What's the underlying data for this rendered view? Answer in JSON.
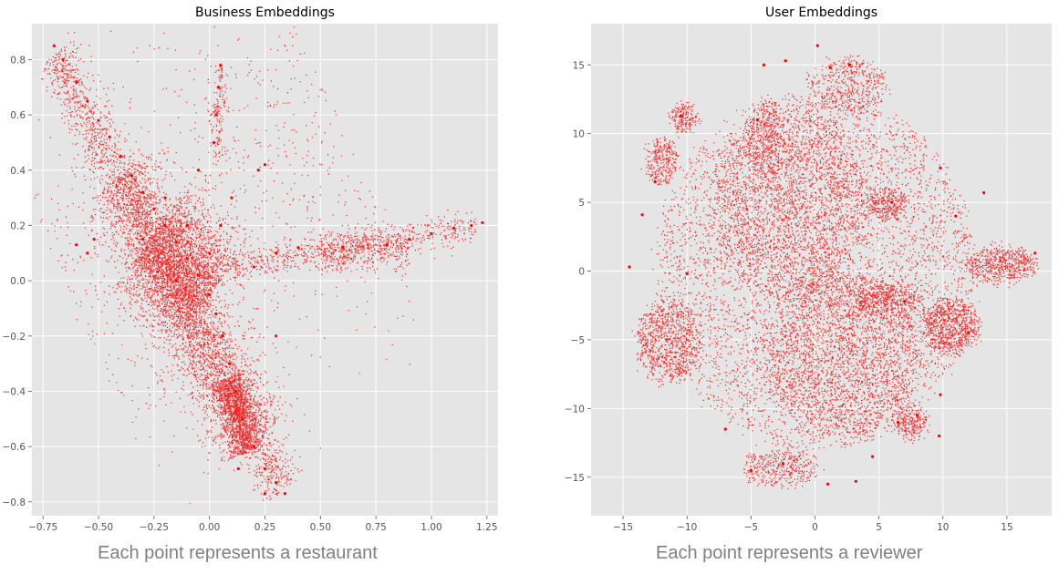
{
  "colors": {
    "panel_background": "#e5e5e5",
    "grid": "#ffffff",
    "points": "#ff0000",
    "caption": "#808080"
  },
  "chart_data": [
    {
      "type": "scatter",
      "title": "Business Embeddings",
      "caption": "Each point represents a restaurant",
      "xlabel": "",
      "ylabel": "",
      "xlim": [
        -0.8,
        1.3
      ],
      "ylim": [
        -0.85,
        0.93
      ],
      "xticks": [
        -0.75,
        -0.5,
        -0.25,
        0.0,
        0.25,
        0.5,
        0.75,
        1.0,
        1.25
      ],
      "xtick_labels": [
        "−0.75",
        "−0.50",
        "−0.25",
        "0.00",
        "0.25",
        "0.50",
        "0.75",
        "1.00",
        "1.25"
      ],
      "yticks": [
        -0.8,
        -0.6,
        -0.4,
        -0.2,
        0.0,
        0.2,
        0.4,
        0.6,
        0.8
      ],
      "ytick_labels": [
        "−0.8",
        "−0.6",
        "−0.4",
        "−0.2",
        "0.0",
        "0.2",
        "0.4",
        "0.6",
        "0.8"
      ],
      "grid": true,
      "point_color": "#ff0000",
      "points": [
        [
          -0.7,
          0.85
        ],
        [
          -0.66,
          0.8
        ],
        [
          -0.6,
          0.72
        ],
        [
          -0.55,
          0.65
        ],
        [
          -0.5,
          0.58
        ],
        [
          -0.45,
          0.52
        ],
        [
          -0.4,
          0.45
        ],
        [
          -0.35,
          0.38
        ],
        [
          -0.3,
          0.32
        ],
        [
          -0.25,
          0.26
        ],
        [
          -0.2,
          0.2
        ],
        [
          -0.15,
          0.14
        ],
        [
          -0.1,
          0.08
        ],
        [
          -0.05,
          0.02
        ],
        [
          0.0,
          -0.05
        ],
        [
          0.03,
          -0.12
        ],
        [
          0.06,
          -0.2
        ],
        [
          0.09,
          -0.3
        ],
        [
          0.12,
          -0.4
        ],
        [
          0.15,
          -0.5
        ],
        [
          0.2,
          -0.6
        ],
        [
          0.25,
          -0.68
        ],
        [
          0.3,
          -0.73
        ],
        [
          0.34,
          -0.77
        ],
        [
          0.13,
          -0.68
        ],
        [
          0.25,
          -0.77
        ],
        [
          -0.2,
          0.3
        ],
        [
          -0.1,
          0.2
        ],
        [
          -0.3,
          0.15
        ],
        [
          -0.15,
          0.0
        ],
        [
          0.0,
          0.1
        ],
        [
          0.05,
          0.2
        ],
        [
          0.2,
          0.05
        ],
        [
          0.4,
          0.12
        ],
        [
          0.6,
          0.12
        ],
        [
          0.8,
          0.13
        ],
        [
          0.9,
          0.15
        ],
        [
          1.0,
          0.17
        ],
        [
          1.1,
          0.19
        ],
        [
          1.18,
          0.2
        ],
        [
          1.23,
          0.21
        ],
        [
          0.05,
          0.78
        ],
        [
          0.04,
          0.7
        ],
        [
          0.03,
          0.6
        ],
        [
          0.02,
          0.5
        ],
        [
          0.25,
          0.42
        ],
        [
          0.22,
          0.4
        ],
        [
          -0.52,
          0.15
        ],
        [
          -0.55,
          0.1
        ],
        [
          -0.6,
          0.13
        ],
        [
          0.3,
          0.1
        ],
        [
          0.3,
          -0.2
        ],
        [
          0.1,
          0.3
        ],
        [
          -0.05,
          0.4
        ]
      ],
      "clusters": [
        {
          "from": [
            -0.7,
            0.82
          ],
          "to": [
            0.33,
            -0.76
          ],
          "width": 0.05,
          "n": 2600
        },
        {
          "from": [
            -0.42,
            0.38
          ],
          "to": [
            0.2,
            -0.58
          ],
          "width": 0.09,
          "n": 2600
        },
        {
          "from": [
            -0.25,
            0.18
          ],
          "to": [
            0.0,
            -0.05
          ],
          "width": 0.11,
          "n": 2200
        },
        {
          "from": [
            0.08,
            -0.35
          ],
          "to": [
            0.17,
            -0.62
          ],
          "width": 0.04,
          "n": 1200
        },
        {
          "from": [
            0.1,
            0.05
          ],
          "to": [
            1.2,
            0.2
          ],
          "width": 0.03,
          "n": 700
        },
        {
          "from": [
            0.5,
            0.1
          ],
          "to": [
            0.9,
            0.12
          ],
          "width": 0.04,
          "n": 400
        },
        {
          "from": [
            0.03,
            0.45
          ],
          "to": [
            0.05,
            0.78
          ],
          "width": 0.02,
          "n": 160
        },
        {
          "from": [
            -0.6,
            -0.1
          ],
          "to": [
            0.6,
            0.55
          ],
          "width": 0.35,
          "n": 900
        }
      ]
    },
    {
      "type": "scatter",
      "title": "User Embeddings",
      "caption": "Each point represents a reviewer",
      "xlabel": "",
      "ylabel": "",
      "xlim": [
        -17.5,
        18.5
      ],
      "ylim": [
        -17.8,
        18.0
      ],
      "xticks": [
        -15,
        -10,
        -5,
        0,
        5,
        10,
        15
      ],
      "xtick_labels": [
        "−15",
        "−10",
        "−5",
        "0",
        "5",
        "10",
        "15"
      ],
      "yticks": [
        -15,
        -10,
        -5,
        0,
        5,
        10,
        15
      ],
      "ytick_labels": [
        "−15",
        "−10",
        "−5",
        "0",
        "5",
        "10",
        "15"
      ],
      "grid": true,
      "point_color": "#ff0000",
      "points": [
        [
          17.2,
          1.3
        ],
        [
          -14.5,
          0.3
        ],
        [
          -13.5,
          4.1
        ],
        [
          13.2,
          5.7
        ],
        [
          11.0,
          4.0
        ],
        [
          9.8,
          7.5
        ],
        [
          -10.5,
          11.3
        ],
        [
          -4.0,
          15.0
        ],
        [
          -2.3,
          15.3
        ],
        [
          1.2,
          14.8
        ],
        [
          2.7,
          15.0
        ],
        [
          -4.5,
          11.0
        ],
        [
          -5.0,
          -14.5
        ],
        [
          1.0,
          -15.5
        ],
        [
          3.2,
          -15.3
        ],
        [
          6.5,
          -11.0
        ],
        [
          8.0,
          -10.5
        ],
        [
          9.8,
          -9.0
        ],
        [
          9.7,
          -12.0
        ],
        [
          12.0,
          -4.5
        ],
        [
          6.0,
          5.0
        ],
        [
          -12.5,
          6.5
        ],
        [
          -10.0,
          -0.2
        ],
        [
          7.0,
          -2.2
        ],
        [
          0.2,
          16.4
        ],
        [
          -7.0,
          -11.5
        ],
        [
          -2.5,
          -14.0
        ],
        [
          4.5,
          -13.5
        ]
      ],
      "clusters": [
        {
          "center": [
            0,
            0
          ],
          "rx": 12.5,
          "ry": 13,
          "n": 9000
        },
        {
          "center": [
            -2,
            5
          ],
          "rx": 6,
          "ry": 7,
          "n": 2400
        },
        {
          "center": [
            2,
            -6
          ],
          "rx": 6,
          "ry": 6,
          "n": 2200
        },
        {
          "center": [
            10.5,
            -4
          ],
          "rx": 2.2,
          "ry": 2,
          "n": 800
        },
        {
          "center": [
            -11.5,
            -5
          ],
          "rx": 2.5,
          "ry": 3,
          "n": 900
        },
        {
          "center": [
            14.5,
            0.5
          ],
          "rx": 2.6,
          "ry": 1.2,
          "n": 600
        },
        {
          "center": [
            -12,
            8
          ],
          "rx": 1.2,
          "ry": 1.6,
          "n": 300
        },
        {
          "center": [
            -10.3,
            11.2
          ],
          "rx": 1,
          "ry": 1,
          "n": 200
        },
        {
          "center": [
            5.5,
            5
          ],
          "rx": 1.5,
          "ry": 1,
          "n": 300
        },
        {
          "center": [
            2.5,
            13.5
          ],
          "rx": 3,
          "ry": 2,
          "n": 500
        },
        {
          "center": [
            -4,
            10
          ],
          "rx": 1.5,
          "ry": 2.5,
          "n": 300
        },
        {
          "center": [
            -2.8,
            -14.3
          ],
          "rx": 3,
          "ry": 1.2,
          "n": 400
        },
        {
          "center": [
            7.5,
            -11
          ],
          "rx": 1.2,
          "ry": 1.2,
          "n": 250
        },
        {
          "center": [
            5.5,
            -2
          ],
          "rx": 2.5,
          "ry": 1,
          "n": 400
        }
      ]
    }
  ]
}
